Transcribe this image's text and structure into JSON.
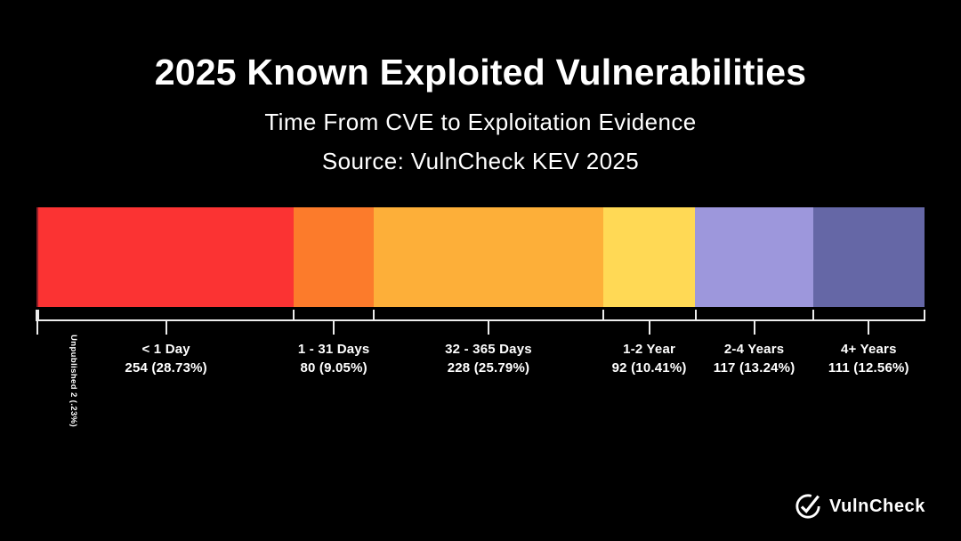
{
  "page": {
    "background_color": "#000000",
    "text_color": "#ffffff"
  },
  "header": {
    "title": "2025 Known Exploited Vulnerabilities",
    "subtitle": "Time From CVE to Exploitation Evidence",
    "source": "Source: VulnCheck KEV 2025"
  },
  "footer": {
    "logo_text": "VulnCheck",
    "logo_icon": "vulncheck-check-circle-icon",
    "logo_color": "#ffffff"
  },
  "chart_data": {
    "type": "bar",
    "variant": "horizontal-stacked-100-percent",
    "title": "2025 Known Exploited Vulnerabilities",
    "subtitle": "Time From CVE to Exploitation Evidence",
    "source": "Source: VulnCheck KEV 2025",
    "categories": [
      "Unpublished",
      "< 1 Day",
      "1 - 31 Days",
      "32 - 365 Days",
      "1-2 Year",
      "2-4 Years",
      "4+ Years"
    ],
    "counts": [
      2,
      254,
      80,
      228,
      92,
      117,
      111
    ],
    "percentages": [
      0.23,
      28.73,
      9.05,
      25.79,
      10.41,
      13.24,
      12.56
    ],
    "value_labels": [
      "2 (.23%)",
      "254 (28.73%)",
      "80 (9.05%)",
      "228 (25.79%)",
      "92 (10.41%)",
      "117 (13.24%)",
      "111 (12.56%)"
    ],
    "rotated_label": "Unpublished 2 (.23%)",
    "colors": [
      "#8f1f29",
      "#fb3333",
      "#fc7b2b",
      "#fdaf39",
      "#ffd955",
      "#9d97dc",
      "#6567a6"
    ],
    "axis_color": "#ededed",
    "label_color": "#ffffff",
    "legend": "none",
    "grid": false,
    "axis_ticks": "boundary-ticks-above-line, category-center-ticks-below-line"
  }
}
